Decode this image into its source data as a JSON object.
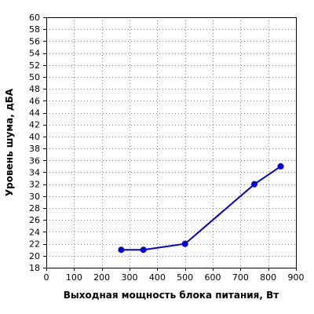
{
  "chart_data": {
    "type": "line",
    "title": "",
    "xlabel": "Выходная мощность блока питания, Вт",
    "ylabel": "Уровень шума, дБА",
    "xlim": [
      0,
      900
    ],
    "ylim": [
      18,
      60
    ],
    "x_ticks": [
      0,
      100,
      200,
      300,
      400,
      500,
      600,
      700,
      800,
      900
    ],
    "y_ticks": [
      18,
      20,
      22,
      24,
      26,
      28,
      30,
      32,
      34,
      36,
      38,
      40,
      42,
      44,
      46,
      48,
      50,
      52,
      54,
      56,
      58,
      60
    ],
    "grid": true,
    "series": [
      {
        "x": [
          270,
          350,
          500,
          750,
          845
        ],
        "y": [
          21,
          21,
          22,
          32,
          35
        ],
        "color": "#0000dd"
      }
    ]
  }
}
